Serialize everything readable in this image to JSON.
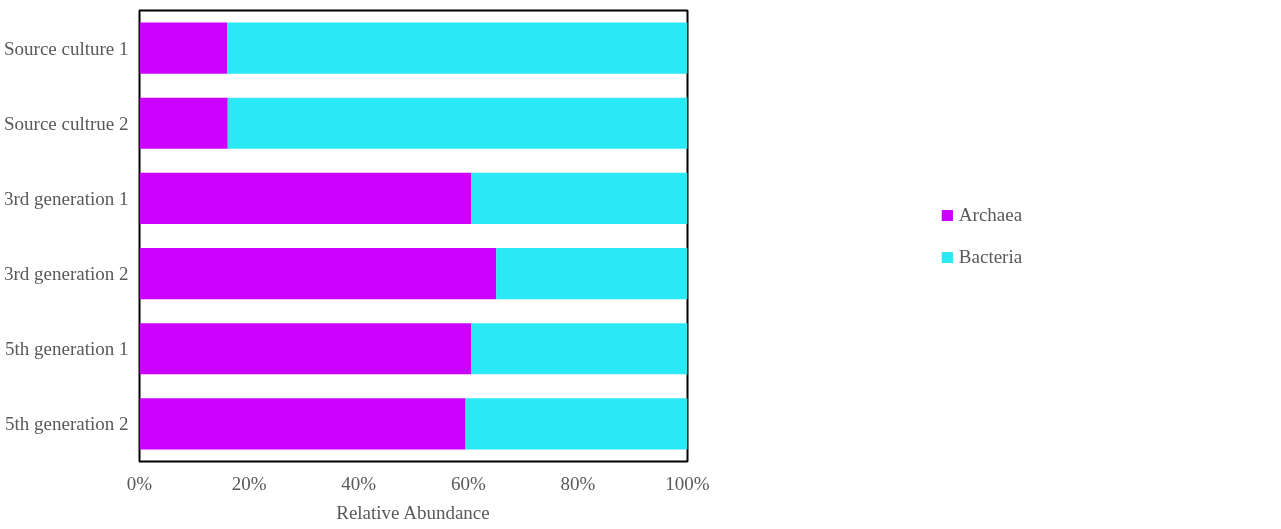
{
  "chart_data": {
    "type": "bar",
    "orientation": "horizontal",
    "stacked": true,
    "xlabel": "Relative Abundance",
    "categories": [
      "Source culture 1",
      "Source cultrue 2",
      "3rd generation 1",
      "3rd generation 2",
      "5th generation 1",
      "5th generation 2"
    ],
    "series": [
      {
        "name": "Archaea",
        "color": "#cc00ff",
        "values": [
          16.0,
          16.1,
          60.5,
          65.1,
          60.5,
          59.5
        ]
      },
      {
        "name": "Bacteria",
        "color": "#2ae8f4",
        "values": [
          84.0,
          83.9,
          39.5,
          34.9,
          39.5,
          40.5
        ]
      }
    ],
    "xlim": [
      0,
      100
    ],
    "xticks": [
      {
        "value": 0,
        "label": "0%"
      },
      {
        "value": 20,
        "label": "20%"
      },
      {
        "value": 40,
        "label": "40%"
      },
      {
        "value": 60,
        "label": "60%"
      },
      {
        "value": 80,
        "label": "80%"
      },
      {
        "value": 100,
        "label": "100%"
      }
    ],
    "grid": false,
    "legend": "right"
  }
}
